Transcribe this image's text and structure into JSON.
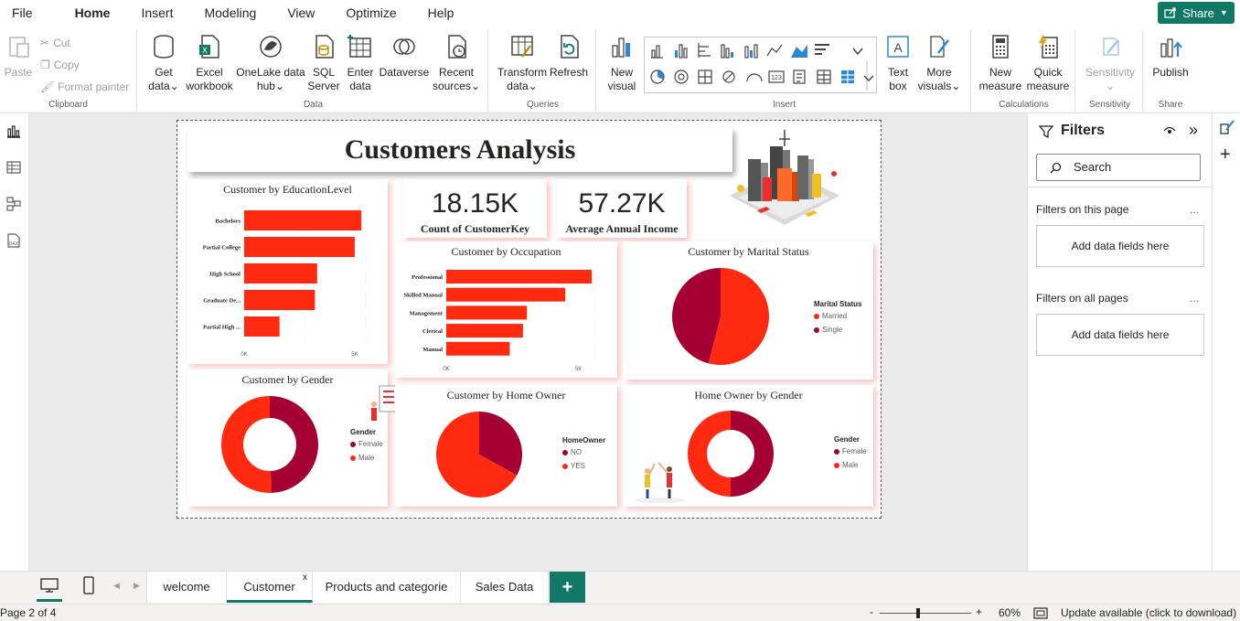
{
  "menu": {
    "items": [
      "File",
      "Home",
      "Insert",
      "Modeling",
      "View",
      "Optimize",
      "Help"
    ],
    "share_label": "Share"
  },
  "ribbon": {
    "clipboard": {
      "paste": "Paste",
      "cut": "Cut",
      "copy": "Copy",
      "format_painter": "Format painter",
      "label": "Clipboard"
    },
    "data": {
      "get_data": [
        "Get",
        "data"
      ],
      "excel": [
        "Excel",
        "workbook"
      ],
      "onelake": [
        "OneLake data",
        "hub"
      ],
      "sql": [
        "SQL",
        "Server"
      ],
      "enter": [
        "Enter",
        "data"
      ],
      "dataverse": "Dataverse",
      "recent": [
        "Recent",
        "sources"
      ],
      "label": "Data"
    },
    "queries": {
      "transform": [
        "Transform",
        "data"
      ],
      "refresh": "Refresh",
      "label": "Queries"
    },
    "insert": {
      "new_visual": [
        "New",
        "visual"
      ],
      "text_box": [
        "Text",
        "box"
      ],
      "more_visuals": [
        "More",
        "visuals"
      ],
      "label": "Insert"
    },
    "calculations": {
      "new_measure": [
        "New",
        "measure"
      ],
      "quick_measure": [
        "Quick",
        "measure"
      ],
      "label": "Calculations"
    },
    "sensitivity": {
      "btn": "Sensitivity",
      "label": "Sensitivity"
    },
    "share": {
      "publish": "Publish",
      "label": "Share"
    }
  },
  "report": {
    "title": "Customers Analysis",
    "kpi_count": {
      "value": "18.15K",
      "label": "Count of CustomerKey"
    },
    "kpi_income": {
      "value": "57.27K",
      "label": "Average Annual Income"
    }
  },
  "colors": {
    "red": "#ff2a10",
    "maroon": "#a50034",
    "teal": "#117865"
  },
  "chart_data": [
    {
      "type": "bar",
      "title": "Customer by EducationLevel",
      "categories": [
        "Bachelors",
        "Partial College",
        "High School",
        "Graduate De...",
        "Partial High ..."
      ],
      "values": [
        5300,
        5000,
        3300,
        3200,
        1600
      ],
      "xticks": [
        "0K",
        "5K"
      ],
      "xlim": [
        0,
        5500
      ]
    },
    {
      "type": "bar",
      "title": "Customer by Occupation",
      "categories": [
        "Professional",
        "Skilled Manual",
        "Management",
        "Clerical",
        "Manual"
      ],
      "values": [
        5500,
        4500,
        3050,
        2900,
        2400
      ],
      "xticks": [
        "0K",
        "5K"
      ],
      "xlim": [
        0,
        5600
      ]
    },
    {
      "type": "pie",
      "title": "Customer by Marital Status",
      "legend_title": "Marital Status",
      "labels": [
        "Married",
        "Single"
      ],
      "values": [
        54,
        46
      ],
      "colors": [
        "#ff2a10",
        "#a50034"
      ]
    },
    {
      "type": "pie",
      "donut": true,
      "title": "Customer by Gender",
      "legend_title": "Gender",
      "labels": [
        "Female",
        "Male"
      ],
      "values": [
        49.5,
        50.5
      ],
      "colors": [
        "#a50034",
        "#ff2a10"
      ]
    },
    {
      "type": "pie",
      "title": "Customer by Home Owner",
      "legend_title": "HomeOwner",
      "labels": [
        "NO",
        "YES"
      ],
      "values": [
        33,
        67
      ],
      "colors": [
        "#a50034",
        "#ff2a10"
      ]
    },
    {
      "type": "pie",
      "donut": true,
      "title": "Home Owner by Gender",
      "legend_title": "Gender",
      "labels": [
        "Female",
        "Male"
      ],
      "values": [
        50,
        50
      ],
      "colors": [
        "#a50034",
        "#ff2a10"
      ]
    }
  ],
  "filters": {
    "title": "Filters",
    "search_placeholder": "Search",
    "on_page": "Filters on this page",
    "all_pages": "Filters on all pages",
    "add_fields": "Add data fields here",
    "more": "..."
  },
  "tabs": {
    "items": [
      "welcome",
      "Customer",
      "Products and categorie",
      "Sales Data"
    ],
    "close": "x",
    "add": "+"
  },
  "status": {
    "page": "Page 2 of 4",
    "zoom": "60%",
    "zoom_fraction": 0.6,
    "minus": "-",
    "plus": "+",
    "update": "Update available (click to download)"
  }
}
